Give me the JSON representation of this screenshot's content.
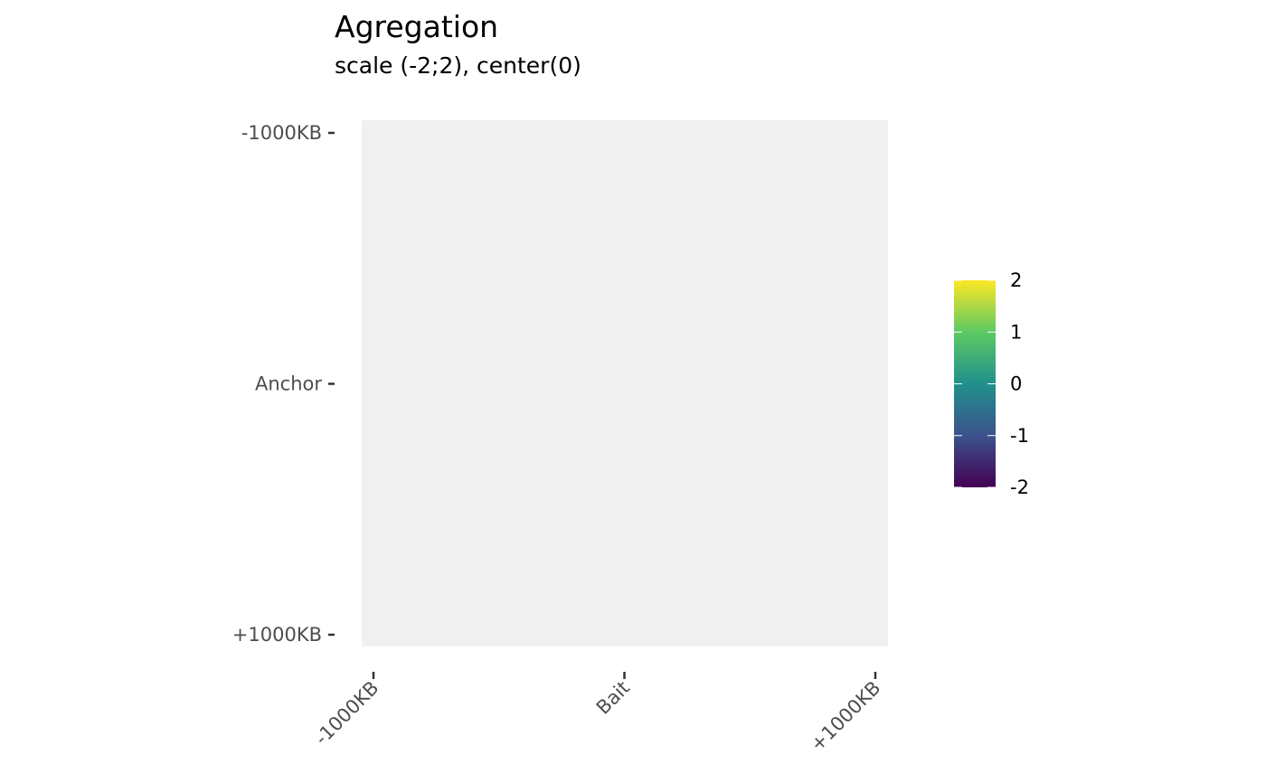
{
  "chart_data": {
    "type": "heatmap",
    "title": "Agregation",
    "subtitle": "scale (-2;2), center(0)",
    "x_ticks": [
      "-1000KB",
      "Bait",
      "+1000KB"
    ],
    "y_ticks": [
      "-1000KB",
      "Anchor",
      "+1000KB"
    ],
    "values": [],
    "panel_color": "#f0f0f0",
    "colorbar": {
      "limits": [
        -2,
        2
      ],
      "center": 0,
      "ticks": [
        2,
        1,
        0,
        -1,
        -2
      ],
      "tick_labels": [
        "2",
        "1",
        "0",
        "-1",
        "-2"
      ],
      "colors": [
        "#440154",
        "#3b528b",
        "#21908c",
        "#5dc963",
        "#fde725"
      ],
      "placement": "right"
    }
  }
}
